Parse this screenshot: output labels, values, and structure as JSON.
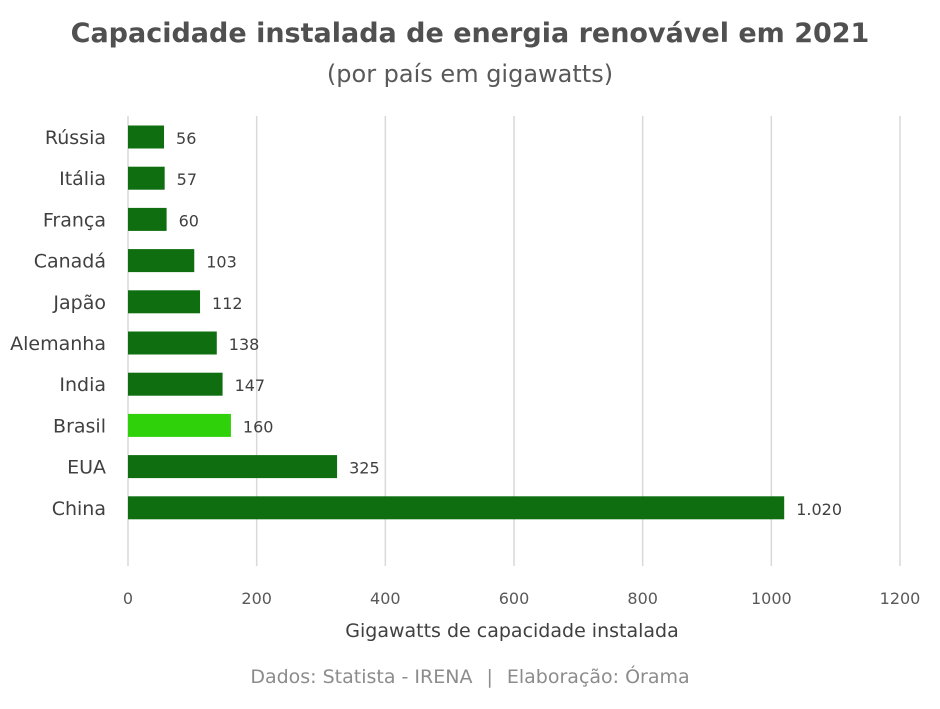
{
  "chart_data": {
    "type": "bar",
    "orientation": "horizontal",
    "title": "Capacidade instalada de energia renovável em 2021",
    "subtitle": "(por país em gigawatts)",
    "categories": [
      "Rússia",
      "Itália",
      "França",
      "Canadá",
      "Japão",
      "Alemanha",
      "India",
      "Brasil",
      "EUA",
      "China"
    ],
    "values": [
      56,
      57,
      60,
      103,
      112,
      138,
      147,
      160,
      325,
      1020
    ],
    "value_labels": [
      "56",
      "57",
      "60",
      "103",
      "112",
      "138",
      "147",
      "160",
      "325",
      "1.020"
    ],
    "highlight": "Brasil",
    "xlabel": "Gigawatts de capacidade instalada",
    "ylabel": "",
    "xlim": [
      0,
      1200
    ],
    "xticks": [
      0,
      200,
      400,
      600,
      800,
      1000,
      1200
    ],
    "grid": "vertical",
    "colors": {
      "bar": "#0f6e0f",
      "highlight": "#2fd10a",
      "grid": "#d9d9d9",
      "text": "#404040",
      "tick": "#595959"
    }
  },
  "footer": {
    "data_source": "Dados: Statista - IRENA",
    "separator": "|",
    "credit": "Elaboração: Órama"
  }
}
